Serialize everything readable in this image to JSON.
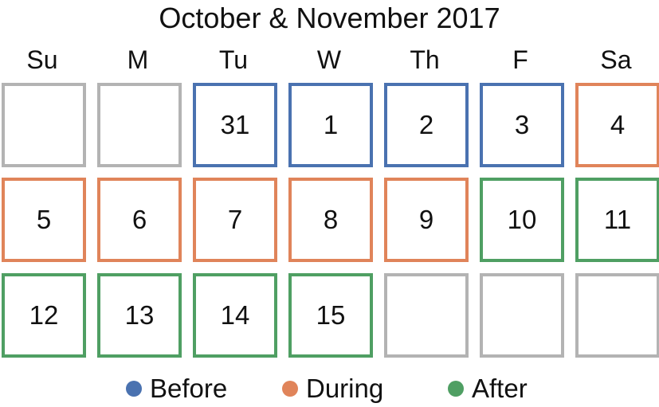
{
  "title": "October & November 2017",
  "days_of_week": [
    "Su",
    "M",
    "Tu",
    "W",
    "Th",
    "F",
    "Sa"
  ],
  "colors": {
    "empty": "#b3b3b3",
    "before": "#4a72b0",
    "during": "#e0845a",
    "after": "#4f9f63"
  },
  "weeks": [
    [
      {
        "day": "",
        "status": "empty"
      },
      {
        "day": "",
        "status": "empty"
      },
      {
        "day": "31",
        "status": "before"
      },
      {
        "day": "1",
        "status": "before"
      },
      {
        "day": "2",
        "status": "before"
      },
      {
        "day": "3",
        "status": "before"
      },
      {
        "day": "4",
        "status": "during"
      }
    ],
    [
      {
        "day": "5",
        "status": "during"
      },
      {
        "day": "6",
        "status": "during"
      },
      {
        "day": "7",
        "status": "during"
      },
      {
        "day": "8",
        "status": "during"
      },
      {
        "day": "9",
        "status": "during"
      },
      {
        "day": "10",
        "status": "after"
      },
      {
        "day": "11",
        "status": "after"
      }
    ],
    [
      {
        "day": "12",
        "status": "after"
      },
      {
        "day": "13",
        "status": "after"
      },
      {
        "day": "14",
        "status": "after"
      },
      {
        "day": "15",
        "status": "after"
      },
      {
        "day": "",
        "status": "empty"
      },
      {
        "day": "",
        "status": "empty"
      },
      {
        "day": "",
        "status": "empty"
      }
    ]
  ],
  "legend": [
    {
      "label": "Before",
      "status": "before"
    },
    {
      "label": "During",
      "status": "during"
    },
    {
      "label": "After",
      "status": "after"
    }
  ]
}
